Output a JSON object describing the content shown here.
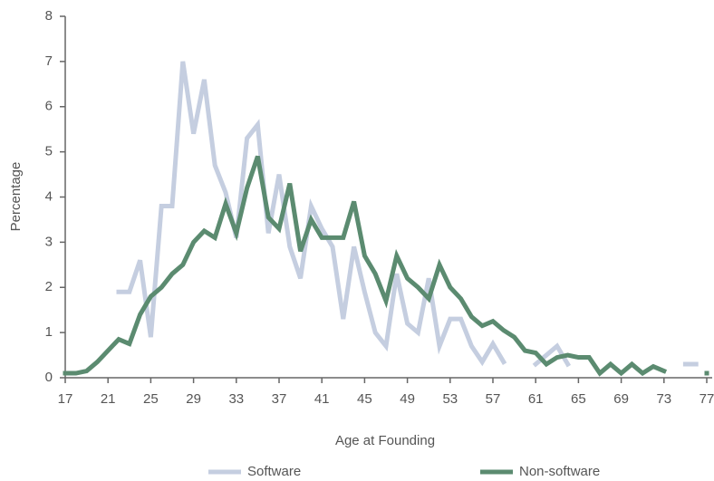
{
  "chart_data": {
    "type": "line",
    "x_label": "Age at Founding",
    "y_label": "Percentage",
    "x": [
      17,
      18,
      19,
      20,
      21,
      22,
      23,
      24,
      25,
      26,
      27,
      28,
      29,
      30,
      31,
      32,
      33,
      34,
      35,
      36,
      37,
      38,
      39,
      40,
      41,
      42,
      43,
      44,
      45,
      46,
      47,
      48,
      49,
      50,
      51,
      52,
      53,
      54,
      55,
      56,
      57,
      58,
      59,
      60,
      61,
      62,
      63,
      64,
      65,
      66,
      67,
      68,
      69,
      70,
      71,
      72,
      73,
      74,
      75,
      76,
      77
    ],
    "series": [
      {
        "name": "Software",
        "color": "#c5cee0",
        "values": [
          null,
          null,
          null,
          null,
          null,
          1.9,
          1.9,
          2.6,
          0.9,
          3.8,
          3.8,
          7.0,
          5.4,
          6.6,
          4.7,
          4.1,
          3.1,
          5.3,
          5.6,
          3.2,
          4.5,
          2.9,
          2.2,
          3.8,
          3.3,
          2.9,
          1.3,
          2.9,
          1.9,
          1.0,
          0.7,
          2.3,
          1.2,
          1.0,
          2.2,
          0.7,
          1.3,
          1.3,
          0.7,
          0.35,
          0.75,
          0.35,
          null,
          null,
          0.3,
          0.5,
          0.7,
          0.3,
          null,
          null,
          null,
          null,
          null,
          null,
          null,
          null,
          null,
          null,
          0.3,
          0.3,
          null
        ]
      },
      {
        "name": "Non-software",
        "color": "#5b8b70",
        "values": [
          0.1,
          0.1,
          0.15,
          0.35,
          0.6,
          0.85,
          0.75,
          1.4,
          1.8,
          2.0,
          2.3,
          2.5,
          3.0,
          3.25,
          3.1,
          3.85,
          3.2,
          4.2,
          4.9,
          3.55,
          3.3,
          4.3,
          2.8,
          3.5,
          3.1,
          3.1,
          3.1,
          3.9,
          2.7,
          2.3,
          1.7,
          2.7,
          2.2,
          2.0,
          1.75,
          2.5,
          2.0,
          1.75,
          1.35,
          1.15,
          1.25,
          1.05,
          0.9,
          0.6,
          0.55,
          0.3,
          0.45,
          0.5,
          0.45,
          0.45,
          0.1,
          0.3,
          0.1,
          0.3,
          0.1,
          0.25,
          0.15,
          null,
          null,
          null,
          0.1
        ]
      }
    ],
    "xlim": [
      17,
      77
    ],
    "xticks": [
      17,
      21,
      25,
      29,
      33,
      37,
      41,
      45,
      49,
      53,
      57,
      61,
      65,
      69,
      73,
      77
    ],
    "ylim": [
      0,
      8
    ],
    "yticks": [
      0,
      1,
      2,
      3,
      4,
      5,
      6,
      7,
      8
    ],
    "legend": "bottom"
  }
}
